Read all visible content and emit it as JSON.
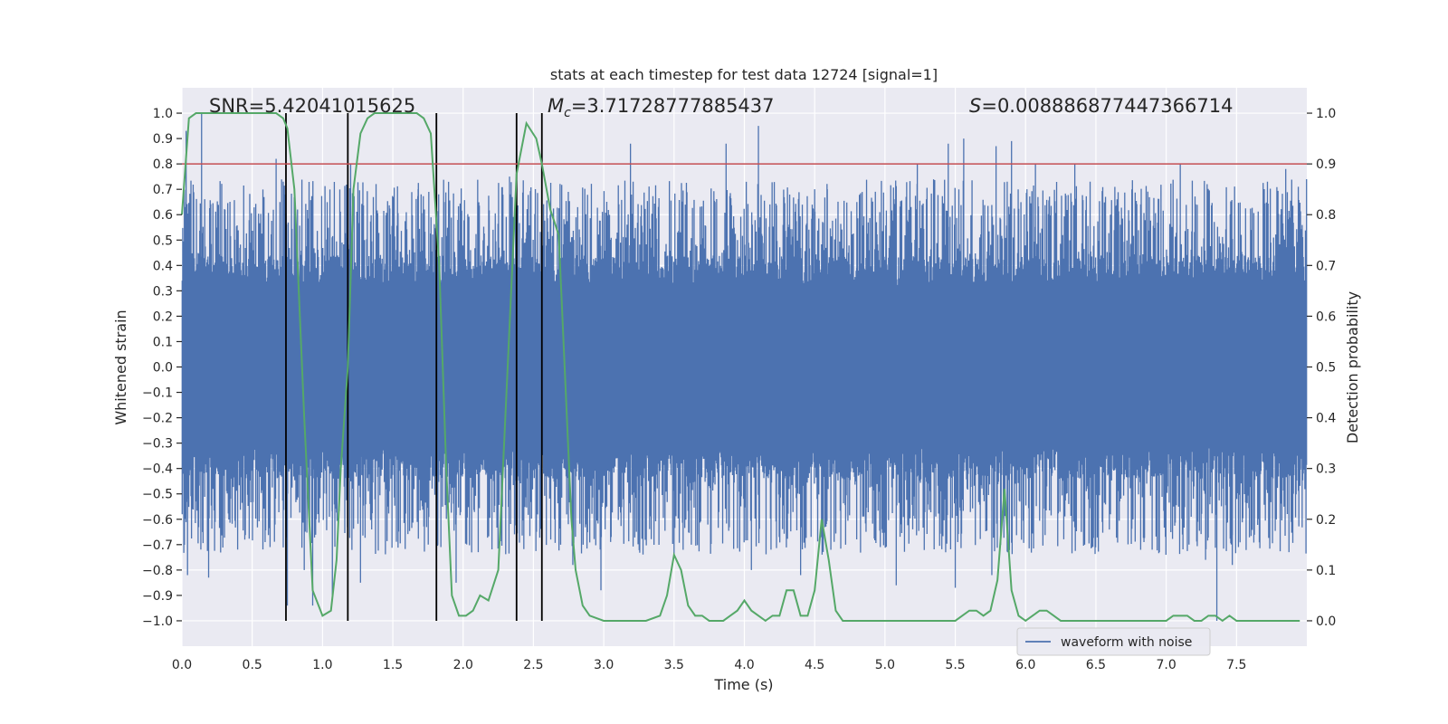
{
  "chart_data": {
    "type": "line",
    "title": "stats at each timestep for test data 12724 [signal=1]",
    "xlabel": "Time (s)",
    "ylabel": "Whitened strain",
    "y2label": "Detection probability",
    "xlim": [
      0.0,
      8.0
    ],
    "ylim": [
      -1.1,
      1.1
    ],
    "y2lim": [
      -0.05,
      1.05
    ],
    "xticks": [
      "0.0",
      "0.5",
      "1.0",
      "1.5",
      "2.0",
      "2.5",
      "3.0",
      "3.5",
      "4.0",
      "4.5",
      "5.0",
      "5.5",
      "6.0",
      "6.5",
      "7.0",
      "7.5"
    ],
    "yticks": [
      "1.0",
      "0.9",
      "0.8",
      "0.7",
      "0.6",
      "0.5",
      "0.4",
      "0.3",
      "0.2",
      "0.1",
      "0.0",
      "−0.1",
      "−0.2",
      "−0.3",
      "−0.4",
      "−0.5",
      "−0.6",
      "−0.7",
      "−0.8",
      "−0.9",
      "−1.0"
    ],
    "y2ticks": [
      "1.0",
      "0.9",
      "0.8",
      "0.7",
      "0.6",
      "0.5",
      "0.4",
      "0.3",
      "0.2",
      "0.1",
      "0.0"
    ],
    "annotations": {
      "snr": "SNR=5.42041015625",
      "mc_symbol": "M",
      "mc_sub": "c",
      "mc_value": "=3.71728777885437",
      "s_symbol": "S",
      "s_value": "=0.008886877447366714"
    },
    "threshold": {
      "value": 0.9,
      "axis": "right",
      "color": "#c44e52"
    },
    "vertical_lines": [
      0.74,
      1.18,
      1.81,
      2.38,
      2.56
    ],
    "legend": {
      "label": "waveform with noise",
      "placement": "lower-right"
    },
    "colors": {
      "waveform": "#4c72b0",
      "probability": "#55a868",
      "vlines": "#000000",
      "background": "#eaeaf2",
      "grid": "#ffffff"
    },
    "series": [
      {
        "name": "Detection probability",
        "axis": "right",
        "x": [
          0.0,
          0.05,
          0.1,
          0.2,
          0.3,
          0.4,
          0.5,
          0.6,
          0.67,
          0.72,
          0.75,
          0.8,
          0.87,
          0.93,
          1.0,
          1.06,
          1.1,
          1.13,
          1.18,
          1.22,
          1.27,
          1.32,
          1.37,
          1.42,
          1.5,
          1.6,
          1.67,
          1.72,
          1.77,
          1.83,
          1.88,
          1.92,
          1.97,
          2.02,
          2.07,
          2.12,
          2.18,
          2.25,
          2.3,
          2.38,
          2.45,
          2.52,
          2.56,
          2.62,
          2.68,
          2.73,
          2.77,
          2.8,
          2.85,
          2.9,
          3.0,
          3.1,
          3.2,
          3.3,
          3.4,
          3.45,
          3.5,
          3.55,
          3.6,
          3.65,
          3.7,
          3.75,
          3.8,
          3.85,
          3.9,
          3.95,
          4.0,
          4.05,
          4.1,
          4.15,
          4.2,
          4.25,
          4.3,
          4.35,
          4.4,
          4.45,
          4.5,
          4.55,
          4.6,
          4.65,
          4.7,
          4.75,
          4.8,
          4.9,
          5.0,
          5.1,
          5.2,
          5.3,
          5.4,
          5.5,
          5.55,
          5.6,
          5.65,
          5.7,
          5.75,
          5.8,
          5.85,
          5.9,
          5.95,
          6.0,
          6.05,
          6.1,
          6.15,
          6.2,
          6.25,
          6.3,
          6.35,
          6.4,
          6.5,
          6.6,
          6.7,
          6.8,
          6.9,
          7.0,
          7.05,
          7.1,
          7.15,
          7.2,
          7.25,
          7.3,
          7.35,
          7.4,
          7.45,
          7.5,
          7.55,
          7.6,
          7.65,
          7.7,
          7.8,
          7.9,
          7.95
        ],
        "values": [
          0.8,
          0.99,
          1.0,
          1.0,
          1.0,
          1.0,
          1.0,
          1.0,
          1.0,
          0.99,
          0.97,
          0.85,
          0.4,
          0.06,
          0.01,
          0.02,
          0.12,
          0.3,
          0.5,
          0.85,
          0.96,
          0.99,
          1.0,
          1.0,
          1.0,
          1.0,
          1.0,
          0.99,
          0.96,
          0.7,
          0.3,
          0.05,
          0.01,
          0.01,
          0.02,
          0.05,
          0.04,
          0.1,
          0.4,
          0.88,
          0.98,
          0.95,
          0.9,
          0.81,
          0.76,
          0.45,
          0.2,
          0.1,
          0.03,
          0.01,
          0.0,
          0.0,
          0.0,
          0.0,
          0.01,
          0.05,
          0.13,
          0.1,
          0.03,
          0.01,
          0.01,
          0.0,
          0.0,
          0.0,
          0.01,
          0.02,
          0.04,
          0.02,
          0.01,
          0.0,
          0.01,
          0.01,
          0.06,
          0.06,
          0.01,
          0.01,
          0.06,
          0.2,
          0.12,
          0.02,
          0.0,
          0.0,
          0.0,
          0.0,
          0.0,
          0.0,
          0.0,
          0.0,
          0.0,
          0.0,
          0.01,
          0.02,
          0.02,
          0.01,
          0.02,
          0.08,
          0.26,
          0.06,
          0.01,
          0.0,
          0.01,
          0.02,
          0.02,
          0.01,
          0.0,
          0.0,
          0.0,
          0.0,
          0.0,
          0.0,
          0.0,
          0.0,
          0.0,
          0.0,
          0.01,
          0.01,
          0.01,
          0.0,
          0.0,
          0.01,
          0.01,
          0.0,
          0.01,
          0.0,
          0.0,
          0.0,
          0.0,
          0.0,
          0.0,
          0.0,
          0.0
        ]
      },
      {
        "name": "waveform with noise",
        "axis": "left",
        "generator": "dense noisy strain, core amplitude ≈ ±0.38 with spikes up to ±1.0",
        "spikes": [
          [
            0.03,
            0.93
          ],
          [
            0.04,
            -0.82
          ],
          [
            0.14,
            1.0
          ],
          [
            0.19,
            -0.83
          ],
          [
            0.67,
            0.82
          ],
          [
            0.75,
            -0.94
          ],
          [
            0.87,
            -0.8
          ],
          [
            0.93,
            -0.94
          ],
          [
            1.07,
            -0.9
          ],
          [
            1.2,
            0.8
          ],
          [
            1.27,
            -0.85
          ],
          [
            1.68,
            0.7
          ],
          [
            1.82,
            -0.7
          ],
          [
            1.95,
            -0.85
          ],
          [
            2.33,
            0.75
          ],
          [
            2.56,
            0.8
          ],
          [
            2.65,
            -0.6
          ],
          [
            2.78,
            -0.78
          ],
          [
            2.98,
            -0.88
          ],
          [
            3.19,
            0.88
          ],
          [
            3.5,
            -0.75
          ],
          [
            3.87,
            0.88
          ],
          [
            4.05,
            -0.8
          ],
          [
            4.1,
            0.95
          ],
          [
            4.4,
            -0.82
          ],
          [
            4.5,
            0.7
          ],
          [
            4.59,
            0.7
          ],
          [
            4.72,
            -0.7
          ],
          [
            4.8,
            0.65
          ],
          [
            5.08,
            -0.86
          ],
          [
            5.23,
            0.8
          ],
          [
            5.45,
            0.88
          ],
          [
            5.5,
            -0.87
          ],
          [
            5.56,
            0.9
          ],
          [
            5.76,
            -0.82
          ],
          [
            5.79,
            0.87
          ],
          [
            5.9,
            0.89
          ],
          [
            6.07,
            0.8
          ],
          [
            6.35,
            0.8
          ],
          [
            6.42,
            -0.7
          ],
          [
            6.9,
            -0.72
          ],
          [
            7.1,
            0.8
          ],
          [
            7.28,
            -0.76
          ],
          [
            7.36,
            -1.0
          ],
          [
            7.47,
            -0.78
          ],
          [
            7.72,
            0.73
          ],
          [
            7.85,
            0.78
          ]
        ]
      }
    ]
  }
}
